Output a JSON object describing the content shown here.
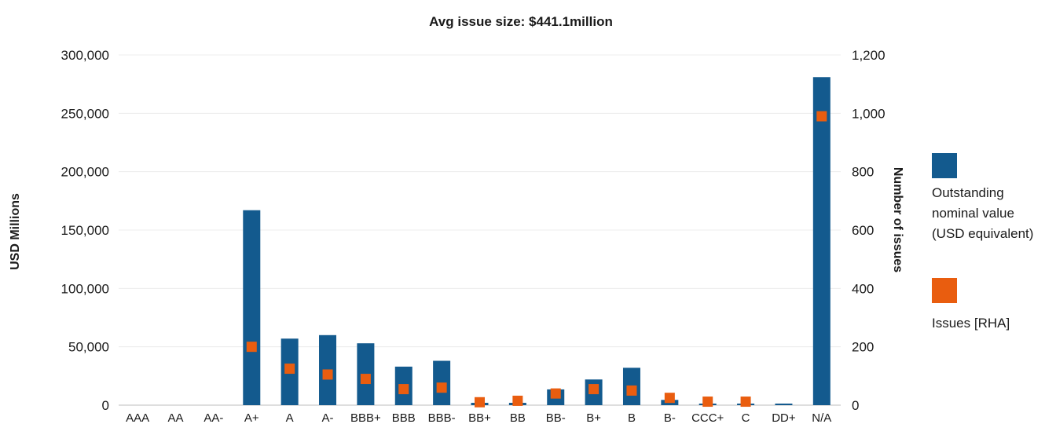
{
  "chart_data": {
    "type": "bar",
    "title": "Avg issue size: $441.1million",
    "ylabel": "USD Millions",
    "y2label": "Number of issues",
    "ylim": [
      0,
      300000
    ],
    "y2lim": [
      0,
      1200
    ],
    "yticks": [
      "0",
      "50,000",
      "100,000",
      "150,000",
      "200,000",
      "250,000",
      "300,000"
    ],
    "y2ticks": [
      "0",
      "200",
      "400",
      "600",
      "800",
      "1,000",
      "1,200"
    ],
    "categories": [
      "AAA",
      "AA",
      "AA-",
      "A+",
      "A",
      "A-",
      "BBB+",
      "BBB",
      "BBB-",
      "BB+",
      "BB",
      "BB-",
      "B+",
      "B",
      "B-",
      "CCC+",
      "C",
      "DD+",
      "N/A"
    ],
    "series": [
      {
        "name": "Outstanding nominal value (USD equivalent)",
        "type": "bar",
        "axis": "left",
        "color": "#135a8e",
        "values": [
          0,
          0,
          0,
          167000,
          57000,
          60000,
          53000,
          33000,
          38000,
          2000,
          2000,
          13500,
          22000,
          32000,
          4500,
          500,
          500,
          500,
          281000
        ]
      },
      {
        "name": "Issues [RHA]",
        "type": "marker",
        "axis": "right",
        "color": "#e95d0f",
        "values": [
          0,
          0,
          0,
          200,
          125,
          105,
          90,
          55,
          60,
          10,
          15,
          40,
          55,
          50,
          25,
          12,
          12,
          0,
          990
        ]
      }
    ],
    "legend": {
      "position": "right",
      "items": [
        "Outstanding nominal value (USD equivalent)",
        "Issues [RHA]"
      ]
    },
    "grid": true
  }
}
